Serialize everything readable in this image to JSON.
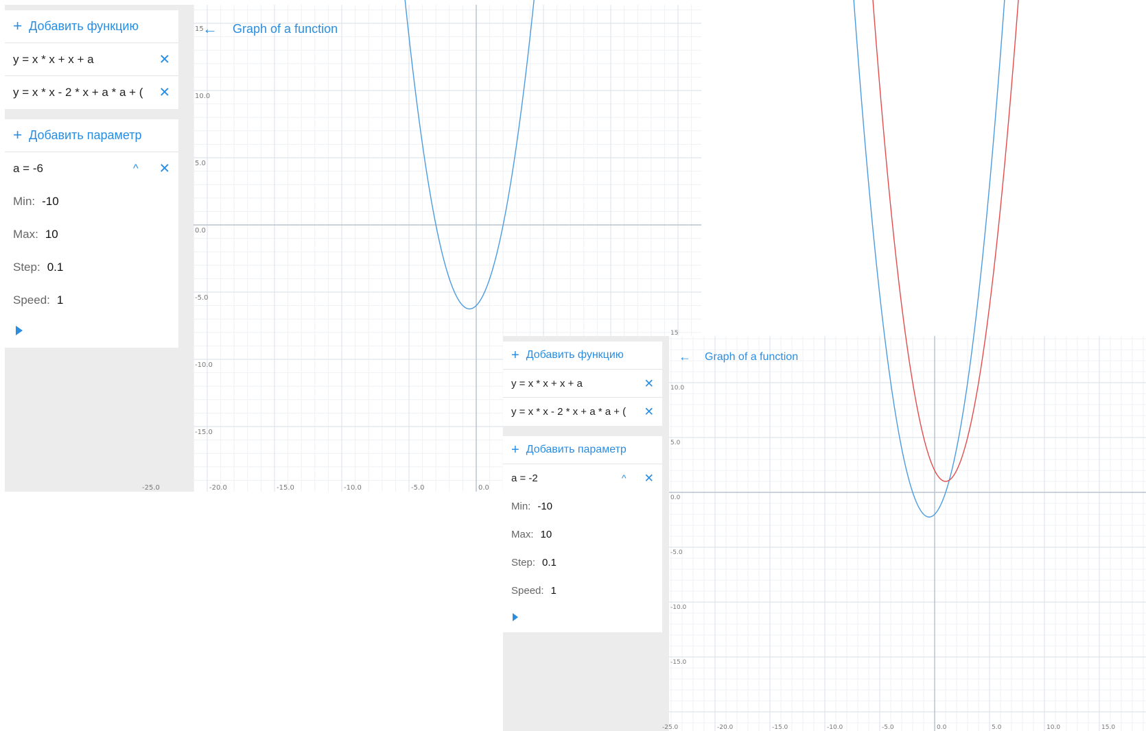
{
  "screens": [
    {
      "add_function_label": "Добавить функцию",
      "functions": [
        "y = x * x + x + a",
        "y = x * x - 2 * x + a * a + ("
      ],
      "add_parameter_label": "Добавить параметр",
      "parameter": {
        "label": "a = -6",
        "a": -6,
        "min_label": "Min:",
        "min": "-10",
        "max_label": "Max:",
        "max": "10",
        "step_label": "Step:",
        "step": "0.1",
        "speed_label": "Speed:",
        "speed": "1"
      },
      "graph_title": "Graph of a function"
    },
    {
      "add_function_label": "Добавить функцию",
      "functions": [
        "y = x * x + x + a",
        "y = x * x - 2 * x + a * a + ("
      ],
      "add_parameter_label": "Добавить параметр",
      "parameter": {
        "label": "a = -2",
        "a": -2,
        "min_label": "Min:",
        "min": "-10",
        "max_label": "Max:",
        "max": "10",
        "step_label": "Step:",
        "step": "0.1",
        "speed_label": "Speed:",
        "speed": "1"
      },
      "graph_title": "Graph of a function"
    }
  ],
  "graph": {
    "x_ticks": [
      "-25.0",
      "-20.0",
      "-15.0",
      "-10.0",
      "-5.0",
      "0.0",
      "5.0",
      "10.0",
      "15.0"
    ],
    "y_ticks": [
      "15",
      "10.0",
      "5.0",
      "0.0",
      "-5.0",
      "-10.0",
      "-15.0"
    ]
  },
  "colors": {
    "accent": "#2a8de0",
    "curve_blue": "#4a9be0",
    "curve_red": "#e24b4b",
    "grid_major": "#dfe5ec",
    "grid_minor": "#eef1f5",
    "axis": "#b9c4d0",
    "sidebar_bg": "#ececec"
  },
  "icons": {
    "add": "plus-icon",
    "remove": "close-icon",
    "collapse": "chevron-up-icon",
    "back": "arrow-left-icon",
    "play": "play-icon"
  }
}
